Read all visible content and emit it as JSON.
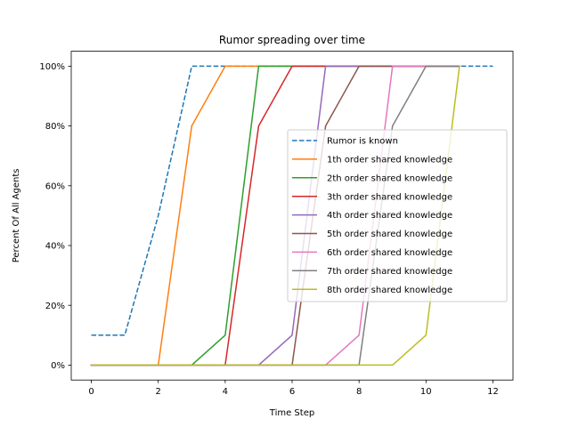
{
  "chart_data": {
    "type": "line",
    "title": "Rumor spreading over time",
    "xlabel": "Time Step",
    "ylabel": "Percent Of All Agents",
    "xlim": [
      -0.6,
      12.6
    ],
    "ylim": [
      -0.05,
      1.05
    ],
    "xticks": [
      0,
      2,
      4,
      6,
      8,
      10,
      12
    ],
    "xtick_labels": [
      "0",
      "2",
      "4",
      "6",
      "8",
      "10",
      "12"
    ],
    "yticks": [
      0,
      0.2,
      0.4,
      0.6,
      0.8,
      1.0
    ],
    "ytick_labels": [
      "0%",
      "20%",
      "40%",
      "60%",
      "80%",
      "100%"
    ],
    "grid": false,
    "legend_position": "center-right",
    "series": [
      {
        "name": "Rumor is known",
        "color": "#1f77b4",
        "dashed": true,
        "x": [
          0,
          1,
          2,
          3,
          4,
          5,
          6,
          7,
          8,
          9,
          10,
          11,
          12
        ],
        "y": [
          0.1,
          0.1,
          0.5,
          1,
          1,
          1,
          1,
          1,
          1,
          1,
          1,
          1,
          1
        ]
      },
      {
        "name": "1th order shared knowledge",
        "color": "#ff7f0e",
        "dashed": false,
        "x": [
          0,
          1,
          2,
          3,
          4,
          5,
          6,
          7,
          8,
          9,
          10,
          11
        ],
        "y": [
          0,
          0,
          0,
          0.8,
          1,
          1,
          1,
          1,
          1,
          1,
          1,
          1
        ]
      },
      {
        "name": "2th order shared knowledge",
        "color": "#2ca02c",
        "dashed": false,
        "x": [
          0,
          1,
          2,
          3,
          4,
          5,
          6,
          7,
          8,
          9,
          10,
          11
        ],
        "y": [
          0,
          0,
          0,
          0,
          0.1,
          1,
          1,
          1,
          1,
          1,
          1,
          1
        ]
      },
      {
        "name": "3th order shared knowledge",
        "color": "#d62728",
        "dashed": false,
        "x": [
          0,
          1,
          2,
          3,
          4,
          5,
          6,
          7,
          8,
          9,
          10,
          11
        ],
        "y": [
          0,
          0,
          0,
          0,
          0,
          0.8,
          1,
          1,
          1,
          1,
          1,
          1
        ]
      },
      {
        "name": "4th order shared knowledge",
        "color": "#9467bd",
        "dashed": false,
        "x": [
          0,
          1,
          2,
          3,
          4,
          5,
          6,
          7,
          8,
          9,
          10,
          11
        ],
        "y": [
          0,
          0,
          0,
          0,
          0,
          0,
          0.1,
          1,
          1,
          1,
          1,
          1
        ]
      },
      {
        "name": "5th order shared knowledge",
        "color": "#8c564b",
        "dashed": false,
        "x": [
          0,
          1,
          2,
          3,
          4,
          5,
          6,
          7,
          8,
          9,
          10,
          11
        ],
        "y": [
          0,
          0,
          0,
          0,
          0,
          0,
          0,
          0.8,
          1,
          1,
          1,
          1
        ]
      },
      {
        "name": "6th order shared knowledge",
        "color": "#e377c2",
        "dashed": false,
        "x": [
          0,
          1,
          2,
          3,
          4,
          5,
          6,
          7,
          8,
          9,
          10,
          11
        ],
        "y": [
          0,
          0,
          0,
          0,
          0,
          0,
          0,
          0,
          0.1,
          1,
          1,
          1
        ]
      },
      {
        "name": "7th order shared knowledge",
        "color": "#7f7f7f",
        "dashed": false,
        "x": [
          0,
          1,
          2,
          3,
          4,
          5,
          6,
          7,
          8,
          9,
          10,
          11
        ],
        "y": [
          0,
          0,
          0,
          0,
          0,
          0,
          0,
          0,
          0,
          0.8,
          1,
          1
        ]
      },
      {
        "name": "8th order shared knowledge",
        "color": "#bcbd22",
        "dashed": false,
        "x": [
          0,
          1,
          2,
          3,
          4,
          5,
          6,
          7,
          8,
          9,
          10,
          11
        ],
        "y": [
          0,
          0,
          0,
          0,
          0,
          0,
          0,
          0,
          0,
          0,
          0.1,
          1
        ]
      }
    ]
  }
}
